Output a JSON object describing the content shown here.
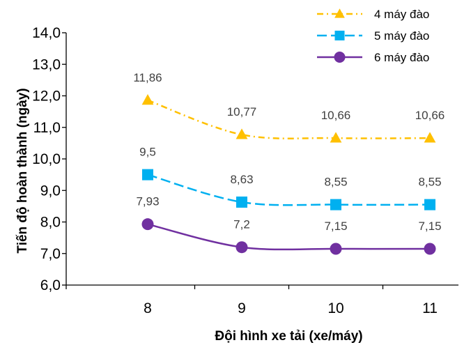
{
  "chart_data": {
    "type": "line",
    "title": "",
    "xlabel": "Đội hình xe tải (xe/máy)",
    "ylabel": "Tiến độ hoàn thành (ngày)",
    "categories": [
      "8",
      "9",
      "10",
      "11"
    ],
    "ylim": [
      6.0,
      14.0
    ],
    "yticks": [
      "6,0",
      "7,0",
      "8,0",
      "9,0",
      "10,0",
      "11,0",
      "12,0",
      "13,0",
      "14,0"
    ],
    "grid": false,
    "legend_position": "top-right",
    "series": [
      {
        "name": "4 máy đào",
        "values": [
          11.86,
          10.77,
          10.66,
          10.66
        ],
        "labels": [
          "11,86",
          "10,77",
          "10,66",
          "10,66"
        ],
        "color": "#ffc000",
        "marker": "triangle",
        "line_style": "dash-dot"
      },
      {
        "name": "5 máy đào",
        "values": [
          9.5,
          8.63,
          8.55,
          8.55
        ],
        "labels": [
          "9,5",
          "8,63",
          "8,55",
          "8,55"
        ],
        "color": "#00b0f0",
        "marker": "square",
        "line_style": "dashed"
      },
      {
        "name": "6 máy đào",
        "values": [
          7.93,
          7.2,
          7.15,
          7.15
        ],
        "labels": [
          "7,93",
          "7,2",
          "7,15",
          "7,15"
        ],
        "color": "#7030a0",
        "marker": "circle",
        "line_style": "solid"
      }
    ]
  }
}
